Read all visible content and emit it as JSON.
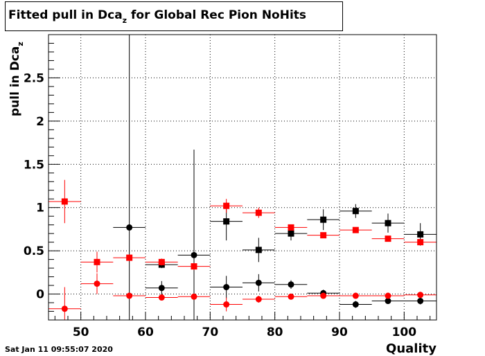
{
  "title": {
    "main": "Fitted pull in Dca",
    "sub": "z",
    "rest": " for Global Rec Pion NoHits"
  },
  "footer": {
    "timestamp": "Sat Jan 11 09:55:07 2020"
  },
  "chart_data": {
    "type": "scatter",
    "title": "Fitted pull in Dcaz for Global Rec Pion NoHits",
    "xlabel": "Quality",
    "ylabel": "pull in Dcaz",
    "xlim": [
      45,
      105
    ],
    "ylim": [
      -0.3,
      3.0
    ],
    "grid": true,
    "xticks": [
      50,
      60,
      70,
      80,
      90,
      100
    ],
    "yticks": [
      0,
      0.5,
      1,
      1.5,
      2,
      2.5
    ],
    "ytick_labels": [
      "0",
      "0.5",
      "1",
      "1.5",
      "2",
      "2.5"
    ],
    "x": [
      47.5,
      52.5,
      57.5,
      62.5,
      67.5,
      72.5,
      77.5,
      82.5,
      87.5,
      92.5,
      97.5,
      102.5
    ],
    "series": [
      {
        "color": "#000000",
        "marker": "circle",
        "values": [
          null,
          null,
          0.77,
          0.07,
          0.45,
          0.08,
          0.13,
          0.11,
          0.01,
          -0.12,
          -0.08,
          -0.08
        ],
        "errors": [
          null,
          null,
          2.9,
          0.08,
          1.22,
          0.13,
          0.1,
          0.05,
          0.04,
          0.04,
          0.03,
          0.04
        ]
      },
      {
        "color": "#000000",
        "marker": "square",
        "values": [
          null,
          null,
          null,
          0.34,
          null,
          0.84,
          0.51,
          0.7,
          0.86,
          0.96,
          0.82,
          0.69
        ],
        "errors": [
          null,
          null,
          null,
          0.04,
          null,
          0.22,
          0.14,
          0.08,
          0.12,
          0.08,
          0.11,
          0.13
        ]
      },
      {
        "color": "#ff0000",
        "marker": "circle",
        "values": [
          -0.17,
          0.12,
          -0.02,
          -0.04,
          -0.03,
          -0.12,
          -0.06,
          -0.03,
          -0.02,
          -0.02,
          -0.02,
          -0.01
        ],
        "errors": [
          0.25,
          0.12,
          0.02,
          0.02,
          0.02,
          0.08,
          0.04,
          0.02,
          0.02,
          0.01,
          0.01,
          0.01
        ]
      },
      {
        "color": "#ff0000",
        "marker": "square",
        "values": [
          1.07,
          0.37,
          0.42,
          0.37,
          0.32,
          1.02,
          0.94,
          0.77,
          0.68,
          0.74,
          0.64,
          0.6
        ],
        "errors": [
          0.25,
          0.12,
          0.04,
          0.04,
          0.04,
          0.08,
          0.06,
          0.03,
          0.03,
          0.02,
          0.02,
          0.02
        ]
      }
    ]
  }
}
